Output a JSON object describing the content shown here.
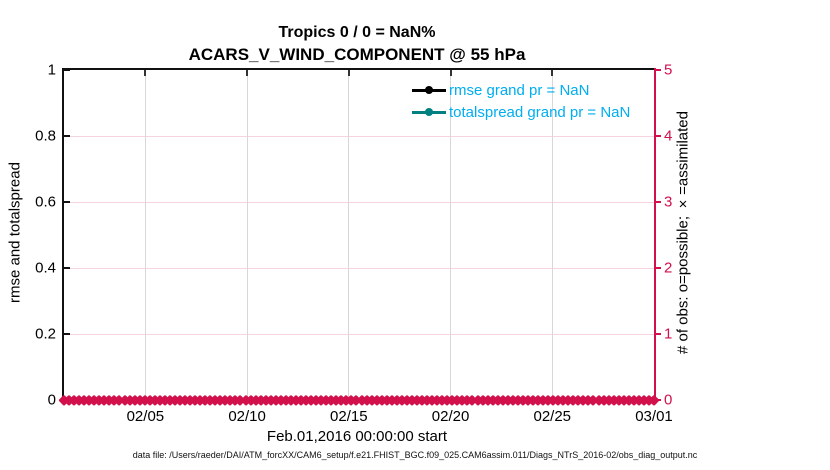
{
  "figure": {
    "title_line1": "Tropics 0 / 0 = NaN%",
    "title_line2": "ACARS_V_WIND_COMPONENT @ 55 hPa",
    "xlabel": "Feb.01,2016 00:00:00 start",
    "footer": "data file: /Users/raeder/DAI/ATM_forcXX/CAM6_setup/f.e21.FHIST_BGC.f09_025.CAM6assim.011/Diags_NTrS_2016-02/obs_diag_output.nc"
  },
  "chart_data": {
    "type": "line",
    "title": "Tropics 0 / 0 = NaN%",
    "subtitle": "ACARS_V_WIND_COMPONENT @ 55 hPa",
    "xlabel": "Feb.01,2016 00:00:00 start",
    "x_range_days": [
      0,
      29
    ],
    "x_ticks": [
      {
        "label": "02/05",
        "day": 4
      },
      {
        "label": "02/10",
        "day": 9
      },
      {
        "label": "02/15",
        "day": 14
      },
      {
        "label": "02/20",
        "day": 19
      },
      {
        "label": "02/25",
        "day": 24
      },
      {
        "label": "03/01",
        "day": 29
      }
    ],
    "left_axis": {
      "label": "rmse and totalspread",
      "min": 0,
      "max": 1,
      "tick_labels": [
        "0",
        "0.2",
        "0.4",
        "0.6",
        "0.8",
        "1"
      ],
      "color": "#000000"
    },
    "right_axis": {
      "label": "# of obs: o=possible; ×=assimilated",
      "min": 0,
      "max": 5,
      "tick_labels": [
        "0",
        "1",
        "2",
        "3",
        "4",
        "5"
      ],
      "color": "#d1104c"
    },
    "series": [
      {
        "name": "rmse grand pr = NaN",
        "color": "#000000",
        "values": []
      },
      {
        "name": "totalspread grand pr = NaN",
        "color": "#008080",
        "values": []
      },
      {
        "name": "obs count (o=possible, x=assimilated)",
        "axis": "right",
        "color": "#d1104c",
        "marker": "x_and_o",
        "constant_value": 0,
        "n_points": 118
      }
    ],
    "legend": [
      {
        "label": "rmse grand pr = NaN",
        "line_color": "#000000"
      },
      {
        "label": "totalspread grand pr = NaN",
        "line_color": "#008080"
      }
    ],
    "legend_text_color": "#00aeef",
    "grid": {
      "vertical_color": "#d8d8d8",
      "horizontal_color": "#f6d3e0"
    }
  }
}
